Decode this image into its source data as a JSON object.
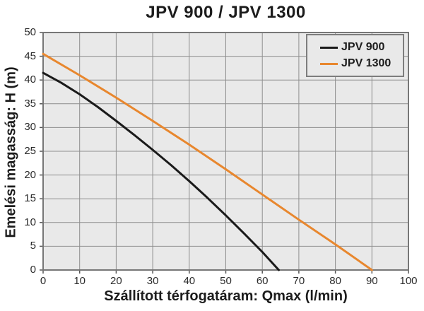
{
  "chart_data": {
    "type": "line",
    "title": "JPV 900 / JPV 1300",
    "xlabel": "Szállított térfogatáram: Qmax (l/min)",
    "ylabel": "Emelési magasság: H (m)",
    "xlim": [
      0,
      100
    ],
    "ylim": [
      0,
      50
    ],
    "x_ticks": [
      0,
      10,
      20,
      30,
      40,
      50,
      60,
      70,
      80,
      90,
      100
    ],
    "y_ticks": [
      0,
      5,
      10,
      15,
      20,
      25,
      30,
      35,
      40,
      45,
      50
    ],
    "grid": true,
    "legend_position": "top-right",
    "series": [
      {
        "name": "JPV 900",
        "color": "#1a1a1a",
        "points": [
          [
            0,
            41.5
          ],
          [
            5,
            39.4
          ],
          [
            10,
            37.0
          ],
          [
            15,
            34.3
          ],
          [
            20,
            31.4
          ],
          [
            25,
            28.4
          ],
          [
            30,
            25.3
          ],
          [
            35,
            22.1
          ],
          [
            40,
            18.7
          ],
          [
            45,
            15.2
          ],
          [
            50,
            11.5
          ],
          [
            55,
            7.7
          ],
          [
            60,
            3.8
          ],
          [
            64.5,
            0
          ]
        ]
      },
      {
        "name": "JPV 1300",
        "color": "#e8872e",
        "points": [
          [
            0,
            45.5
          ],
          [
            10,
            41.0
          ],
          [
            20,
            36.3
          ],
          [
            30,
            31.4
          ],
          [
            40,
            26.4
          ],
          [
            50,
            21.2
          ],
          [
            60,
            15.9
          ],
          [
            70,
            10.6
          ],
          [
            80,
            5.4
          ],
          [
            90,
            0
          ]
        ]
      }
    ]
  },
  "colors": {
    "plot_background": "#e9e9e9",
    "grid_line": "#8e8e8e",
    "plot_border": "#777777",
    "tick_mark": "#555555",
    "text": "#1c1c1c"
  }
}
